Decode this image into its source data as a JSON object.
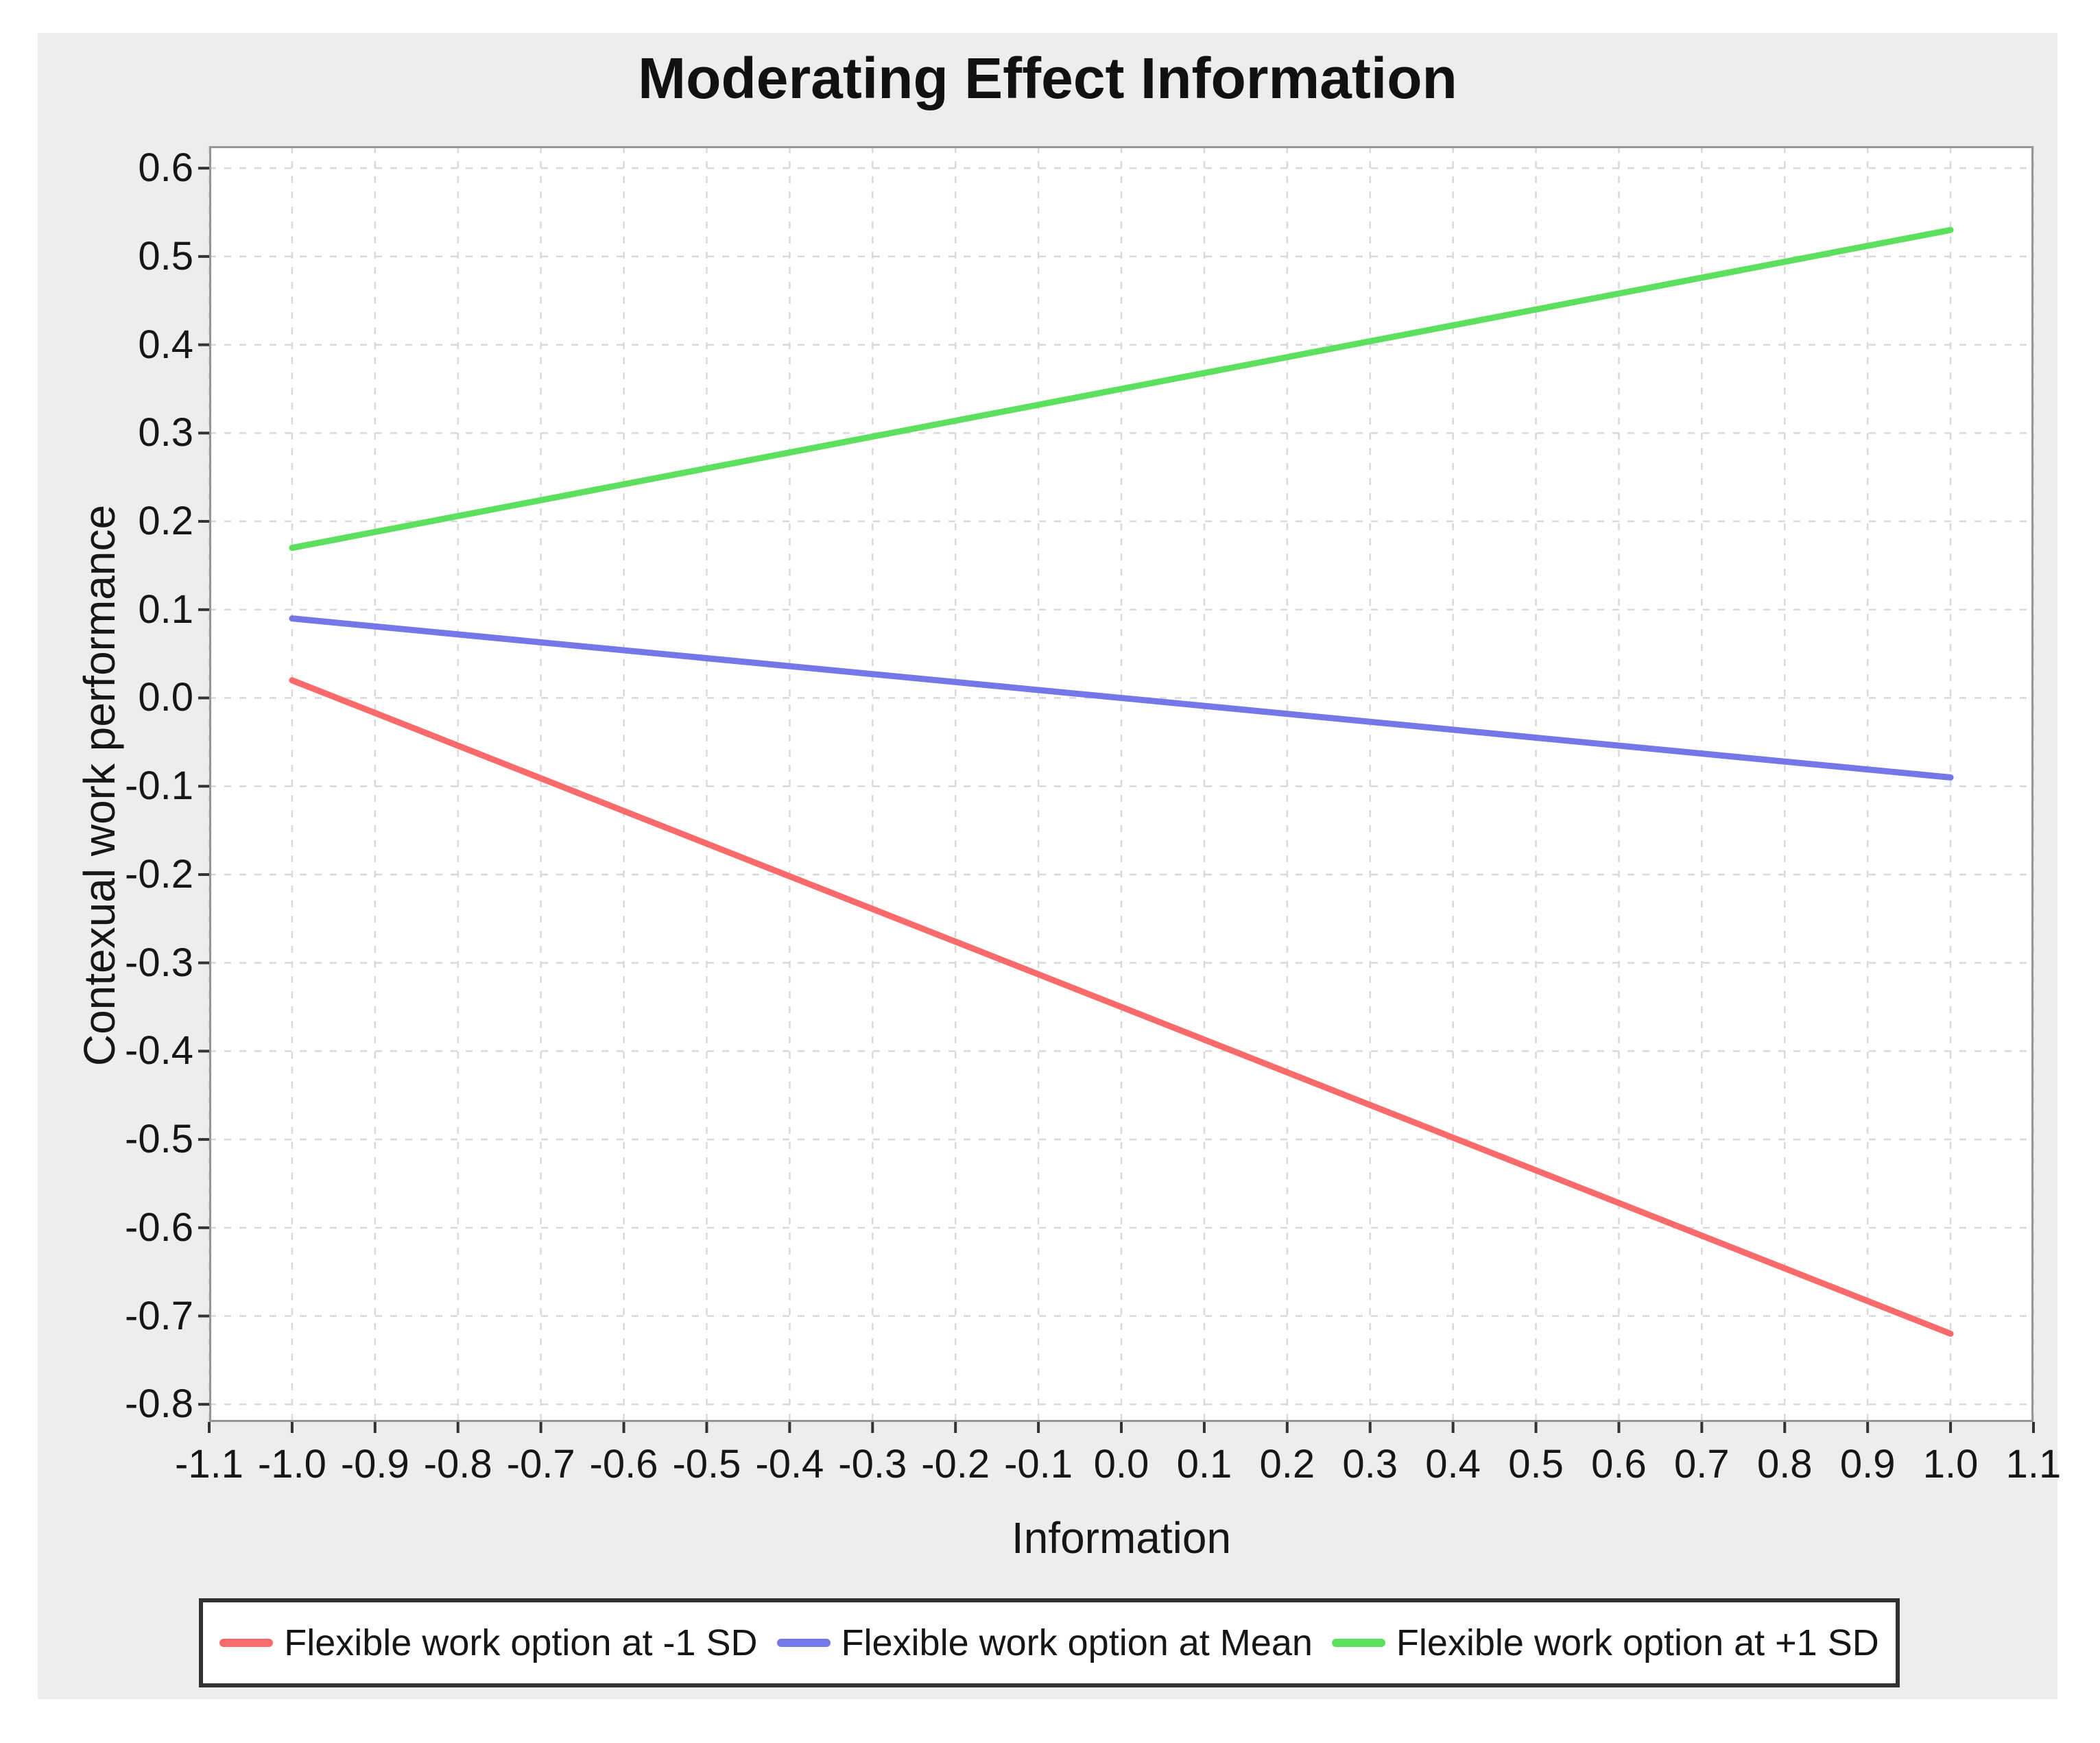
{
  "page": {
    "background_color": "#ffffff",
    "panel_background_color": "#ededed",
    "plot_background_color": "#ffffff",
    "grid_color": "#d9d9d9",
    "plot_border_color": "#969696",
    "tick_mark_color": "#333333",
    "text_color": "#161616"
  },
  "chart_data": {
    "type": "line",
    "title": "Moderating Effect Information",
    "xlabel": "Information",
    "ylabel": "Contexual work performance",
    "xlim": [
      -1.1,
      1.1
    ],
    "ylim": [
      -0.82,
      0.625
    ],
    "grid": true,
    "grid_style": "dashed",
    "legend_position": "bottom",
    "x_tick_labels": [
      "-1.1",
      "-1.0",
      "-0.9",
      "-0.8",
      "-0.7",
      "-0.6",
      "-0.5",
      "-0.4",
      "-0.3",
      "-0.2",
      "-0.1",
      "0.0",
      "0.1",
      "0.2",
      "0.3",
      "0.4",
      "0.5",
      "0.6",
      "0.7",
      "0.8",
      "0.9",
      "1.0",
      "1.1"
    ],
    "y_tick_labels": [
      "0.6",
      "0.5",
      "0.4",
      "0.3",
      "0.2",
      "0.1",
      "0.0",
      "-0.1",
      "-0.2",
      "-0.3",
      "-0.4",
      "-0.5",
      "-0.6",
      "-0.7",
      "-0.8"
    ],
    "series": [
      {
        "name": "Flexible work option at -1 SD",
        "color": "#f96b6b",
        "x": [
          -1.0,
          1.0
        ],
        "y": [
          0.02,
          -0.72
        ]
      },
      {
        "name": "Flexible work option at Mean",
        "color": "#7577e8",
        "x": [
          -1.0,
          1.0
        ],
        "y": [
          0.09,
          -0.09
        ]
      },
      {
        "name": "Flexible work option at +1 SD",
        "color": "#5ce05e",
        "x": [
          -1.0,
          1.0
        ],
        "y": [
          0.17,
          0.53
        ]
      }
    ]
  }
}
